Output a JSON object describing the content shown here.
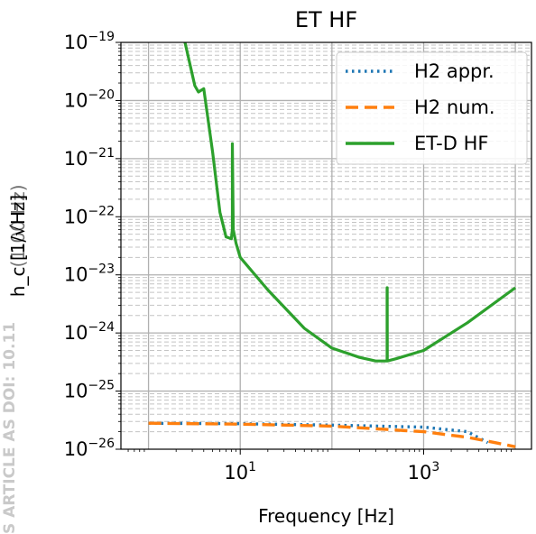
{
  "chart_data": {
    "type": "line",
    "title": "ET HF",
    "xlabel": "Frequency [Hz]",
    "ylabel": "h_c [1/√Hz]",
    "xscale": "log",
    "yscale": "log",
    "xlim": [
      0.5,
      15000
    ],
    "ylim": [
      1e-26,
      1e-19
    ],
    "grid": true,
    "legend_position": "top-right",
    "x_ticks": [
      {
        "value": 10,
        "base": "10",
        "exp": "1"
      },
      {
        "value": 1000,
        "base": "10",
        "exp": "3"
      }
    ],
    "y_ticks": [
      {
        "value": 1e-19,
        "base": "10",
        "exp": "−19"
      },
      {
        "value": 1e-20,
        "base": "10",
        "exp": "−20"
      },
      {
        "value": 1e-21,
        "base": "10",
        "exp": "−21"
      },
      {
        "value": 1e-22,
        "base": "10",
        "exp": "−22"
      },
      {
        "value": 1e-23,
        "base": "10",
        "exp": "−23"
      },
      {
        "value": 1e-24,
        "base": "10",
        "exp": "−24"
      },
      {
        "value": 1e-25,
        "base": "10",
        "exp": "−25"
      },
      {
        "value": 1e-26,
        "base": "10",
        "exp": "−26"
      }
    ],
    "series": [
      {
        "name": "H2 appr.",
        "color": "#1f77b4",
        "dash": "dotted",
        "x": [
          1,
          10,
          100,
          1000,
          3000,
          5000
        ],
        "y": [
          2.8e-26,
          2.75e-26,
          2.6e-26,
          2.4e-26,
          2e-26,
          1.3e-26
        ]
      },
      {
        "name": "H2 num.",
        "color": "#ff7f0e",
        "dash": "dashed",
        "x": [
          1,
          10,
          100,
          1000,
          3000,
          6000,
          10000
        ],
        "y": [
          2.8e-26,
          2.7e-26,
          2.5e-26,
          2e-26,
          1.6e-26,
          1.3e-26,
          1.1e-26
        ]
      },
      {
        "name": "ET-D HF",
        "color": "#2ca02c",
        "dash": "solid",
        "x": [
          2.5,
          3.2,
          3.5,
          4,
          5,
          6,
          7,
          8,
          8.01,
          8.2,
          8.21,
          8.4,
          9,
          10,
          20,
          50,
          100,
          200,
          300,
          400,
          400.1,
          401,
          401.1,
          500,
          1000,
          3000,
          10000
        ],
        "y": [
          1e-19,
          1.8e-20,
          1.4e-20,
          1.6e-20,
          1.3e-21,
          1.2e-22,
          4.5e-23,
          4.2e-23,
          4.2e-23,
          6e-23,
          1.8e-21,
          6e-23,
          3.5e-23,
          2e-23,
          5.5e-24,
          1.2e-24,
          5.5e-25,
          3.8e-25,
          3.3e-25,
          3.3e-25,
          6e-24,
          6e-24,
          3.3e-25,
          3.6e-25,
          5e-25,
          1.5e-24,
          6e-24
        ]
      }
    ]
  },
  "watermark": "S ARTICLE AS DOI: 10.11",
  "overlap_label": "(1.00 Hz)"
}
